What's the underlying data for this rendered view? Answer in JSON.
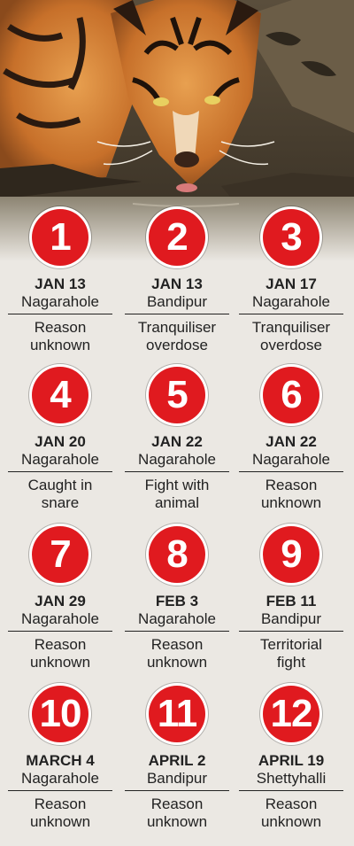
{
  "colors": {
    "badge": "#e01a1f",
    "background": "#ebe8e3",
    "text": "#222222"
  },
  "hero_image": "tiger-drinking-water",
  "entries": [
    {
      "number": "1",
      "date": "JAN 13",
      "place": "Nagarahole",
      "reason_line1": "Reason",
      "reason_line2": "unknown"
    },
    {
      "number": "2",
      "date": "JAN 13",
      "place": "Bandipur",
      "reason_line1": "Tranquiliser",
      "reason_line2": "overdose"
    },
    {
      "number": "3",
      "date": "JAN 17",
      "place": "Nagarahole",
      "reason_line1": "Tranquiliser",
      "reason_line2": "overdose"
    },
    {
      "number": "4",
      "date": "JAN 20",
      "place": "Nagarahole",
      "reason_line1": "Caught in",
      "reason_line2": "snare"
    },
    {
      "number": "5",
      "date": "JAN 22",
      "place": "Nagarahole",
      "reason_line1": "Fight with",
      "reason_line2": "animal"
    },
    {
      "number": "6",
      "date": "JAN 22",
      "place": "Nagarahole",
      "reason_line1": "Reason",
      "reason_line2": "unknown"
    },
    {
      "number": "7",
      "date": "JAN 29",
      "place": "Nagarahole",
      "reason_line1": "Reason",
      "reason_line2": "unknown"
    },
    {
      "number": "8",
      "date": "FEB 3",
      "place": "Nagarahole",
      "reason_line1": "Reason",
      "reason_line2": "unknown"
    },
    {
      "number": "9",
      "date": "FEB 11",
      "place": "Bandipur",
      "reason_line1": "Territorial",
      "reason_line2": "fight"
    },
    {
      "number": "10",
      "date": "MARCH 4",
      "place": "Nagarahole",
      "reason_line1": "Reason",
      "reason_line2": "unknown"
    },
    {
      "number": "11",
      "date": "APRIL 2",
      "place": "Bandipur",
      "reason_line1": "Reason",
      "reason_line2": "unknown"
    },
    {
      "number": "12",
      "date": "APRIL 19",
      "place": "Shettyhalli",
      "reason_line1": "Reason",
      "reason_line2": "unknown"
    }
  ]
}
